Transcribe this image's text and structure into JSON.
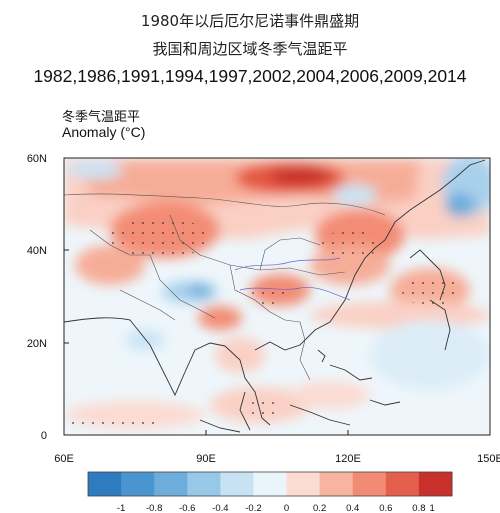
{
  "header": {
    "title_line1": "1980年以后厄尔尼诺事件鼎盛期",
    "title_line2": "我国和周边区域冬季气温距平",
    "years_line": "1982,1986,1991,1994,1997,2002,2004,2006,2009,2014"
  },
  "map": {
    "subtitle_cn": "冬季气温距平",
    "subtitle_en": "Anomaly (°C)",
    "extent": {
      "lon": [
        60,
        150
      ],
      "lat": [
        0,
        60
      ]
    },
    "lat_ticks": [
      "0",
      "20N",
      "40N",
      "60N"
    ],
    "lon_ticks": [
      "60E",
      "90E",
      "120E",
      "150E"
    ],
    "colors": {
      "strong_warm": "#d0332e",
      "warm": "#f38c74",
      "light_warm": "#fad0c4",
      "cool": "#c9e4f4",
      "neutral": "#eef6fb"
    }
  },
  "colorbar": {
    "labels": [
      "-1",
      "-0.8",
      "-0.6",
      "-0.4",
      "-0.2",
      "0",
      "0.2",
      "0.4",
      "0.6",
      "0.8",
      "1"
    ],
    "colors": [
      "#2f7bc0",
      "#4a94cf",
      "#6dacdb",
      "#98c8e8",
      "#c7e2f3",
      "#eaf4fb",
      "#fbdbd2",
      "#f7b4a1",
      "#f28b74",
      "#e35f4b",
      "#c8302b"
    ]
  }
}
